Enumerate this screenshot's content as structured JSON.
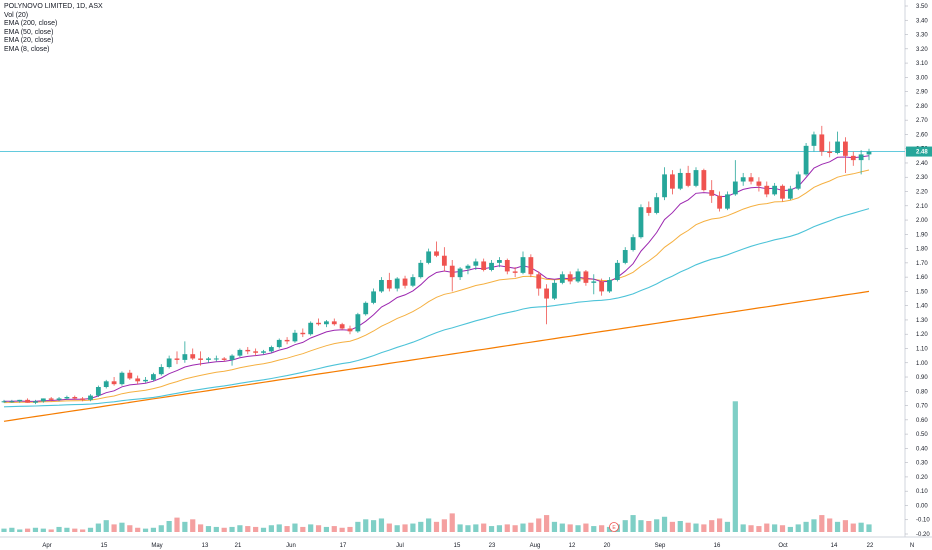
{
  "legend": {
    "title": "POLYNOVO LIMITED, 1D, ASX",
    "vol": "Vol (20)",
    "ema200": "EMA (200, close)",
    "ema50": "EMA (50, close)",
    "ema20": "EMA (20, close)",
    "ema8": "EMA (8, close)"
  },
  "price_label": "2.48",
  "event_marker": "E",
  "colors": {
    "up": "#26a69a",
    "down": "#ef5350",
    "up_vol": "#7fcfc6",
    "down_vol": "#f4a0a0",
    "ema8": "#9c27b0",
    "ema20": "#f5b041",
    "ema50": "#4dc3d8",
    "ema200": "#f57c00",
    "price_line": "#4dc3d8"
  },
  "chart_data": {
    "type": "candlestick",
    "y_axis_ticks": [
      "3.50",
      "3.40",
      "3.30",
      "3.20",
      "3.10",
      "3.00",
      "2.90",
      "2.80",
      "2.70",
      "2.60",
      "2.50",
      "2.40",
      "2.30",
      "2.20",
      "2.10",
      "2.00",
      "1.90",
      "1.80",
      "1.70",
      "1.60",
      "1.50",
      "1.40",
      "1.30",
      "1.20",
      "1.10",
      "1.00",
      "0.90",
      "0.80",
      "0.70",
      "0.60",
      "0.50",
      "0.40",
      "0.30",
      "0.20",
      "0.10",
      "0.00",
      "-0.10",
      "-0.20"
    ],
    "ylim": [
      -0.2,
      3.5
    ],
    "x_axis_ticks": [
      "Apr",
      "15",
      "May",
      "13",
      "21",
      "Jun",
      "17",
      "Jul",
      "15",
      "23",
      "Aug",
      "12",
      "20",
      "Sep",
      "16",
      "Oct",
      "14",
      "22",
      "N"
    ],
    "last_price": 2.48,
    "candles": [
      [
        0.73,
        0.74,
        0.72,
        0.73
      ],
      [
        0.73,
        0.74,
        0.72,
        0.73
      ],
      [
        0.73,
        0.74,
        0.72,
        0.74
      ],
      [
        0.74,
        0.75,
        0.72,
        0.72
      ],
      [
        0.72,
        0.74,
        0.71,
        0.73
      ],
      [
        0.73,
        0.75,
        0.72,
        0.75
      ],
      [
        0.75,
        0.76,
        0.73,
        0.74
      ],
      [
        0.74,
        0.76,
        0.73,
        0.75
      ],
      [
        0.75,
        0.77,
        0.74,
        0.76
      ],
      [
        0.76,
        0.77,
        0.74,
        0.75
      ],
      [
        0.75,
        0.76,
        0.73,
        0.74
      ],
      [
        0.74,
        0.78,
        0.73,
        0.77
      ],
      [
        0.77,
        0.84,
        0.76,
        0.83
      ],
      [
        0.83,
        0.88,
        0.82,
        0.87
      ],
      [
        0.87,
        0.9,
        0.84,
        0.85
      ],
      [
        0.85,
        0.94,
        0.84,
        0.93
      ],
      [
        0.93,
        0.95,
        0.88,
        0.89
      ],
      [
        0.89,
        0.91,
        0.85,
        0.87
      ],
      [
        0.87,
        0.9,
        0.86,
        0.88
      ],
      [
        0.88,
        0.93,
        0.87,
        0.92
      ],
      [
        0.92,
        0.99,
        0.91,
        0.97
      ],
      [
        0.97,
        1.05,
        0.96,
        1.03
      ],
      [
        1.03,
        1.08,
        0.99,
        1.02
      ],
      [
        1.02,
        1.15,
        1.0,
        1.06
      ],
      [
        1.06,
        1.1,
        1.02,
        1.03
      ],
      [
        1.03,
        1.08,
        0.98,
        1.02
      ],
      [
        1.02,
        1.04,
        1.0,
        1.03
      ],
      [
        1.03,
        1.05,
        1.01,
        1.03
      ],
      [
        1.03,
        1.04,
        1.01,
        1.02
      ],
      [
        1.02,
        1.06,
        0.98,
        1.05
      ],
      [
        1.05,
        1.1,
        1.04,
        1.09
      ],
      [
        1.09,
        1.11,
        1.06,
        1.08
      ],
      [
        1.08,
        1.1,
        1.05,
        1.07
      ],
      [
        1.07,
        1.09,
        1.06,
        1.08
      ],
      [
        1.08,
        1.12,
        1.07,
        1.11
      ],
      [
        1.11,
        1.17,
        1.1,
        1.16
      ],
      [
        1.16,
        1.18,
        1.13,
        1.15
      ],
      [
        1.15,
        1.23,
        1.14,
        1.21
      ],
      [
        1.21,
        1.24,
        1.18,
        1.2
      ],
      [
        1.2,
        1.29,
        1.19,
        1.28
      ],
      [
        1.28,
        1.31,
        1.26,
        1.27
      ],
      [
        1.27,
        1.3,
        1.25,
        1.29
      ],
      [
        1.29,
        1.31,
        1.26,
        1.27
      ],
      [
        1.27,
        1.28,
        1.23,
        1.24
      ],
      [
        1.24,
        1.26,
        1.2,
        1.22
      ],
      [
        1.22,
        1.35,
        1.21,
        1.34
      ],
      [
        1.34,
        1.43,
        1.33,
        1.42
      ],
      [
        1.42,
        1.52,
        1.41,
        1.5
      ],
      [
        1.5,
        1.6,
        1.49,
        1.58
      ],
      [
        1.58,
        1.63,
        1.5,
        1.52
      ],
      [
        1.52,
        1.6,
        1.5,
        1.59
      ],
      [
        1.59,
        1.61,
        1.52,
        1.54
      ],
      [
        1.54,
        1.62,
        1.53,
        1.6
      ],
      [
        1.6,
        1.72,
        1.59,
        1.7
      ],
      [
        1.7,
        1.8,
        1.69,
        1.78
      ],
      [
        1.78,
        1.85,
        1.74,
        1.75
      ],
      [
        1.75,
        1.81,
        1.64,
        1.68
      ],
      [
        1.68,
        1.72,
        1.5,
        1.6
      ],
      [
        1.6,
        1.67,
        1.58,
        1.66
      ],
      [
        1.66,
        1.69,
        1.62,
        1.68
      ],
      [
        1.68,
        1.73,
        1.65,
        1.71
      ],
      [
        1.71,
        1.73,
        1.64,
        1.65
      ],
      [
        1.65,
        1.72,
        1.64,
        1.7
      ],
      [
        1.7,
        1.74,
        1.67,
        1.72
      ],
      [
        1.72,
        1.73,
        1.62,
        1.64
      ],
      [
        1.64,
        1.67,
        1.6,
        1.63
      ],
      [
        1.63,
        1.78,
        1.62,
        1.74
      ],
      [
        1.74,
        1.76,
        1.6,
        1.62
      ],
      [
        1.62,
        1.64,
        1.47,
        1.52
      ],
      [
        1.52,
        1.55,
        1.27,
        1.45
      ],
      [
        1.45,
        1.58,
        1.44,
        1.56
      ],
      [
        1.56,
        1.64,
        1.55,
        1.62
      ],
      [
        1.62,
        1.64,
        1.55,
        1.57
      ],
      [
        1.57,
        1.66,
        1.56,
        1.64
      ],
      [
        1.64,
        1.65,
        1.54,
        1.56
      ],
      [
        1.56,
        1.62,
        1.48,
        1.57
      ],
      [
        1.57,
        1.59,
        1.47,
        1.5
      ],
      [
        1.5,
        1.6,
        1.49,
        1.58
      ],
      [
        1.58,
        1.72,
        1.57,
        1.7
      ],
      [
        1.7,
        1.81,
        1.69,
        1.79
      ],
      [
        1.79,
        1.9,
        1.78,
        1.88
      ],
      [
        1.88,
        2.11,
        1.87,
        2.09
      ],
      [
        2.09,
        2.13,
        2.03,
        2.05
      ],
      [
        2.05,
        2.19,
        2.04,
        2.16
      ],
      [
        2.16,
        2.37,
        2.14,
        2.32
      ],
      [
        2.32,
        2.35,
        2.18,
        2.22
      ],
      [
        2.22,
        2.36,
        2.21,
        2.33
      ],
      [
        2.33,
        2.38,
        2.23,
        2.24
      ],
      [
        2.24,
        2.37,
        2.23,
        2.35
      ],
      [
        2.35,
        2.36,
        2.2,
        2.21
      ],
      [
        2.21,
        2.28,
        2.12,
        2.17
      ],
      [
        2.17,
        2.2,
        2.06,
        2.08
      ],
      [
        2.08,
        2.2,
        2.07,
        2.18
      ],
      [
        2.18,
        2.42,
        2.17,
        2.27
      ],
      [
        2.27,
        2.33,
        2.24,
        2.3
      ],
      [
        2.3,
        2.33,
        2.25,
        2.27
      ],
      [
        2.27,
        2.3,
        2.2,
        2.24
      ],
      [
        2.24,
        2.27,
        2.16,
        2.18
      ],
      [
        2.18,
        2.26,
        2.17,
        2.24
      ],
      [
        2.24,
        2.25,
        2.13,
        2.15
      ],
      [
        2.15,
        2.24,
        2.14,
        2.22
      ],
      [
        2.22,
        2.34,
        2.21,
        2.32
      ],
      [
        2.32,
        2.54,
        2.31,
        2.52
      ],
      [
        2.52,
        2.62,
        2.48,
        2.6
      ],
      [
        2.6,
        2.66,
        2.45,
        2.48
      ],
      [
        2.48,
        2.55,
        2.44,
        2.47
      ],
      [
        2.47,
        2.62,
        2.46,
        2.55
      ],
      [
        2.55,
        2.58,
        2.33,
        2.45
      ],
      [
        2.45,
        2.48,
        2.38,
        2.42
      ],
      [
        2.42,
        2.49,
        2.32,
        2.46
      ],
      [
        2.46,
        2.5,
        2.42,
        2.48
      ]
    ],
    "volume": [
      4,
      5,
      3,
      4,
      5,
      4,
      3,
      6,
      5,
      4,
      3,
      5,
      10,
      14,
      9,
      11,
      8,
      5,
      4,
      5,
      8,
      13,
      17,
      12,
      15,
      9,
      7,
      6,
      5,
      6,
      8,
      7,
      6,
      5,
      8,
      9,
      7,
      10,
      6,
      9,
      8,
      6,
      7,
      5,
      6,
      12,
      15,
      14,
      16,
      10,
      8,
      9,
      10,
      12,
      16,
      12,
      15,
      22,
      9,
      8,
      9,
      10,
      7,
      8,
      9,
      8,
      10,
      11,
      16,
      20,
      12,
      10,
      9,
      8,
      10,
      7,
      8,
      6,
      9,
      14,
      20,
      14,
      13,
      15,
      18,
      12,
      13,
      11,
      10,
      9,
      14,
      16,
      12,
      26,
      9,
      8,
      7,
      10,
      9,
      8,
      6,
      9,
      12,
      15,
      20,
      16,
      12,
      14,
      10,
      11,
      9
    ],
    "volume_spike": {
      "index": 93,
      "value": 0.73
    }
  }
}
